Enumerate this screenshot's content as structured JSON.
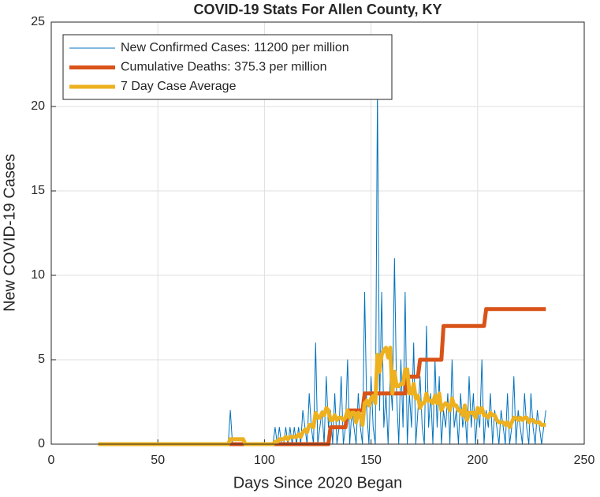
{
  "chart_data": {
    "type": "line",
    "title": "COVID-19 Stats For Allen County, KY",
    "xlabel": "Days Since 2020 Began",
    "ylabel": "New COVID-19 Cases",
    "xlim": [
      0,
      250
    ],
    "xticks": [
      0,
      50,
      100,
      150,
      200,
      250
    ],
    "ylim": [
      0,
      25
    ],
    "yticks": [
      0,
      5,
      10,
      15,
      20,
      25
    ],
    "grid": true,
    "legend": "upper left",
    "x": [
      22,
      23,
      24,
      25,
      26,
      27,
      28,
      29,
      30,
      31,
      32,
      33,
      34,
      35,
      36,
      37,
      38,
      39,
      40,
      41,
      42,
      43,
      44,
      45,
      46,
      47,
      48,
      49,
      50,
      51,
      52,
      53,
      54,
      55,
      56,
      57,
      58,
      59,
      60,
      61,
      62,
      63,
      64,
      65,
      66,
      67,
      68,
      69,
      70,
      71,
      72,
      73,
      74,
      75,
      76,
      77,
      78,
      79,
      80,
      81,
      82,
      83,
      84,
      85,
      86,
      87,
      88,
      89,
      90,
      91,
      92,
      93,
      94,
      95,
      96,
      97,
      98,
      99,
      100,
      101,
      102,
      103,
      104,
      105,
      106,
      107,
      108,
      109,
      110,
      111,
      112,
      113,
      114,
      115,
      116,
      117,
      118,
      119,
      120,
      121,
      122,
      123,
      124,
      125,
      126,
      127,
      128,
      129,
      130,
      131,
      132,
      133,
      134,
      135,
      136,
      137,
      138,
      139,
      140,
      141,
      142,
      143,
      144,
      145,
      146,
      147,
      148,
      149,
      150,
      151,
      152,
      153,
      154,
      155,
      156,
      157,
      158,
      159,
      160,
      161,
      162,
      163,
      164,
      165,
      166,
      167,
      168,
      169,
      170,
      171,
      172,
      173,
      174,
      175,
      176,
      177,
      178,
      179,
      180,
      181,
      182,
      183,
      184,
      185,
      186,
      187,
      188,
      189,
      190,
      191,
      192,
      193,
      194,
      195,
      196,
      197,
      198,
      199,
      200,
      201,
      202,
      203,
      204,
      205,
      206,
      207,
      208,
      209,
      210,
      211,
      212,
      213,
      214,
      215,
      216,
      217,
      218,
      219,
      220,
      221,
      222,
      223,
      224,
      225,
      226,
      227,
      228,
      229,
      230,
      231,
      232
    ],
    "series": [
      {
        "name": "New Confirmed Cases: 11200 per million",
        "color": "#0072BD",
        "values": [
          0,
          0,
          0,
          0,
          0,
          0,
          0,
          0,
          0,
          0,
          0,
          0,
          0,
          0,
          0,
          0,
          0,
          0,
          0,
          0,
          0,
          0,
          0,
          0,
          0,
          0,
          0,
          0,
          0,
          0,
          0,
          0,
          0,
          0,
          0,
          0,
          0,
          0,
          0,
          0,
          0,
          0,
          0,
          0,
          0,
          0,
          0,
          0,
          0,
          0,
          0,
          0,
          0,
          0,
          0,
          0,
          0,
          0,
          0,
          0,
          0,
          0,
          2,
          0,
          0,
          0,
          0,
          0,
          0,
          0,
          0,
          0,
          0,
          0,
          0,
          0,
          0,
          0,
          0,
          0,
          0,
          0,
          0,
          1,
          0,
          1,
          0,
          0,
          1,
          0,
          1,
          0,
          1,
          0,
          1,
          0,
          2,
          1,
          0,
          3,
          1,
          0,
          6,
          0,
          1,
          2,
          0,
          4,
          1,
          2,
          0,
          3,
          0,
          1,
          4,
          0,
          1,
          5,
          0,
          2,
          1,
          0,
          3,
          1,
          0,
          9,
          2,
          0,
          4,
          1,
          0,
          21,
          2,
          9,
          1,
          3,
          0,
          4,
          2,
          11,
          3,
          0,
          5,
          1,
          9,
          0,
          3,
          1,
          6,
          0,
          2,
          4,
          1,
          0,
          7,
          1,
          3,
          0,
          5,
          1,
          4,
          0,
          2,
          1,
          3,
          0,
          5,
          1,
          2,
          0,
          3,
          1,
          2,
          0,
          4,
          1,
          3,
          0,
          2,
          1,
          5,
          0,
          2,
          1,
          3,
          0,
          2,
          1,
          0,
          2,
          1,
          0,
          3,
          0,
          1,
          4,
          0,
          2,
          1,
          0,
          3,
          1,
          0,
          3,
          1,
          0,
          2,
          1,
          0,
          1,
          2
        ]
      },
      {
        "name": "Cumulative Deaths: 375.3 per million",
        "color": "#D95319",
        "values": [
          0,
          0,
          0,
          0,
          0,
          0,
          0,
          0,
          0,
          0,
          0,
          0,
          0,
          0,
          0,
          0,
          0,
          0,
          0,
          0,
          0,
          0,
          0,
          0,
          0,
          0,
          0,
          0,
          0,
          0,
          0,
          0,
          0,
          0,
          0,
          0,
          0,
          0,
          0,
          0,
          0,
          0,
          0,
          0,
          0,
          0,
          0,
          0,
          0,
          0,
          0,
          0,
          0,
          0,
          0,
          0,
          0,
          0,
          0,
          0,
          0,
          0,
          0,
          0,
          0,
          0,
          0,
          0,
          0,
          0,
          0,
          0,
          0,
          0,
          0,
          0,
          0,
          0,
          0,
          0,
          0,
          0,
          0,
          0,
          0,
          0,
          0,
          0,
          0,
          0,
          0,
          0,
          0,
          0,
          0,
          0,
          0,
          0,
          0,
          0,
          0,
          0,
          0,
          0,
          0,
          0,
          0,
          0,
          0,
          1,
          1,
          1,
          1,
          1,
          1,
          1,
          1,
          2,
          2,
          2,
          2,
          2,
          2,
          2,
          2,
          3,
          3,
          3,
          3,
          3,
          3,
          3,
          3,
          3,
          3,
          3,
          3,
          3,
          3,
          3,
          3,
          3,
          3,
          3,
          3,
          4,
          4,
          4,
          4,
          4,
          4,
          5,
          5,
          5,
          5,
          5,
          5,
          5,
          5,
          5,
          5,
          5,
          7,
          7,
          7,
          7,
          7,
          7,
          7,
          7,
          7,
          7,
          7,
          7,
          7,
          7,
          7,
          7,
          7,
          7,
          7,
          7,
          8,
          8,
          8,
          8,
          8,
          8,
          8,
          8,
          8,
          8,
          8,
          8,
          8,
          8,
          8,
          8,
          8,
          8,
          8,
          8,
          8,
          8,
          8,
          8,
          8,
          8,
          8,
          8,
          8
        ]
      },
      {
        "name": "7 Day Case Average",
        "color": "#EDB120",
        "values": [
          0,
          0,
          0,
          0,
          0,
          0,
          0,
          0,
          0,
          0,
          0,
          0,
          0,
          0,
          0,
          0,
          0,
          0,
          0,
          0,
          0,
          0,
          0,
          0,
          0,
          0,
          0,
          0,
          0,
          0,
          0,
          0,
          0,
          0,
          0,
          0,
          0,
          0,
          0,
          0,
          0,
          0,
          0,
          0,
          0,
          0,
          0,
          0,
          0,
          0,
          0,
          0,
          0,
          0,
          0,
          0,
          0,
          0,
          0,
          0,
          0,
          0,
          0.29,
          0.29,
          0.29,
          0.29,
          0.29,
          0.29,
          0.29,
          0,
          0,
          0,
          0,
          0,
          0,
          0,
          0,
          0,
          0,
          0,
          0,
          0,
          0,
          0.14,
          0.14,
          0.29,
          0.29,
          0.29,
          0.43,
          0.29,
          0.43,
          0.43,
          0.43,
          0.43,
          0.57,
          0.43,
          0.71,
          0.86,
          0.71,
          1.14,
          1.14,
          1,
          1.86,
          1.57,
          1.57,
          1.86,
          1.71,
          2.14,
          2,
          1.43,
          1.43,
          1.71,
          1.43,
          1.57,
          1.57,
          1.43,
          1.57,
          2,
          1.57,
          1.86,
          1.86,
          1.29,
          1.86,
          1.71,
          1.14,
          2.43,
          2.57,
          2.29,
          2.71,
          2.86,
          2.43,
          5.29,
          4.29,
          5.29,
          5.57,
          5.71,
          5.14,
          5.71,
          3,
          4.29,
          3.43,
          3.43,
          3.57,
          3.57,
          4.43,
          4.43,
          3,
          3,
          3.57,
          2.71,
          2.86,
          2.14,
          2.43,
          2.43,
          3,
          2.57,
          2.57,
          2.43,
          2.86,
          2.43,
          3,
          2,
          2.29,
          2.43,
          2.29,
          2,
          2.71,
          2.29,
          2.29,
          2,
          2,
          1.71,
          2.29,
          1.43,
          1.86,
          1.86,
          1.86,
          1.57,
          2.14,
          1.86,
          2.14,
          1.71,
          1.71,
          1.57,
          1.86,
          1.71,
          1.71,
          1.43,
          1.29,
          1.29,
          1.29,
          1.14,
          1.29,
          1,
          1.29,
          1.57,
          1.57,
          1.43,
          1.57,
          1.43,
          1.57,
          1.57,
          1.29,
          1.43,
          1.43,
          1.29,
          1.29,
          1.29,
          1.14,
          1.14,
          1.14
        ]
      }
    ]
  }
}
